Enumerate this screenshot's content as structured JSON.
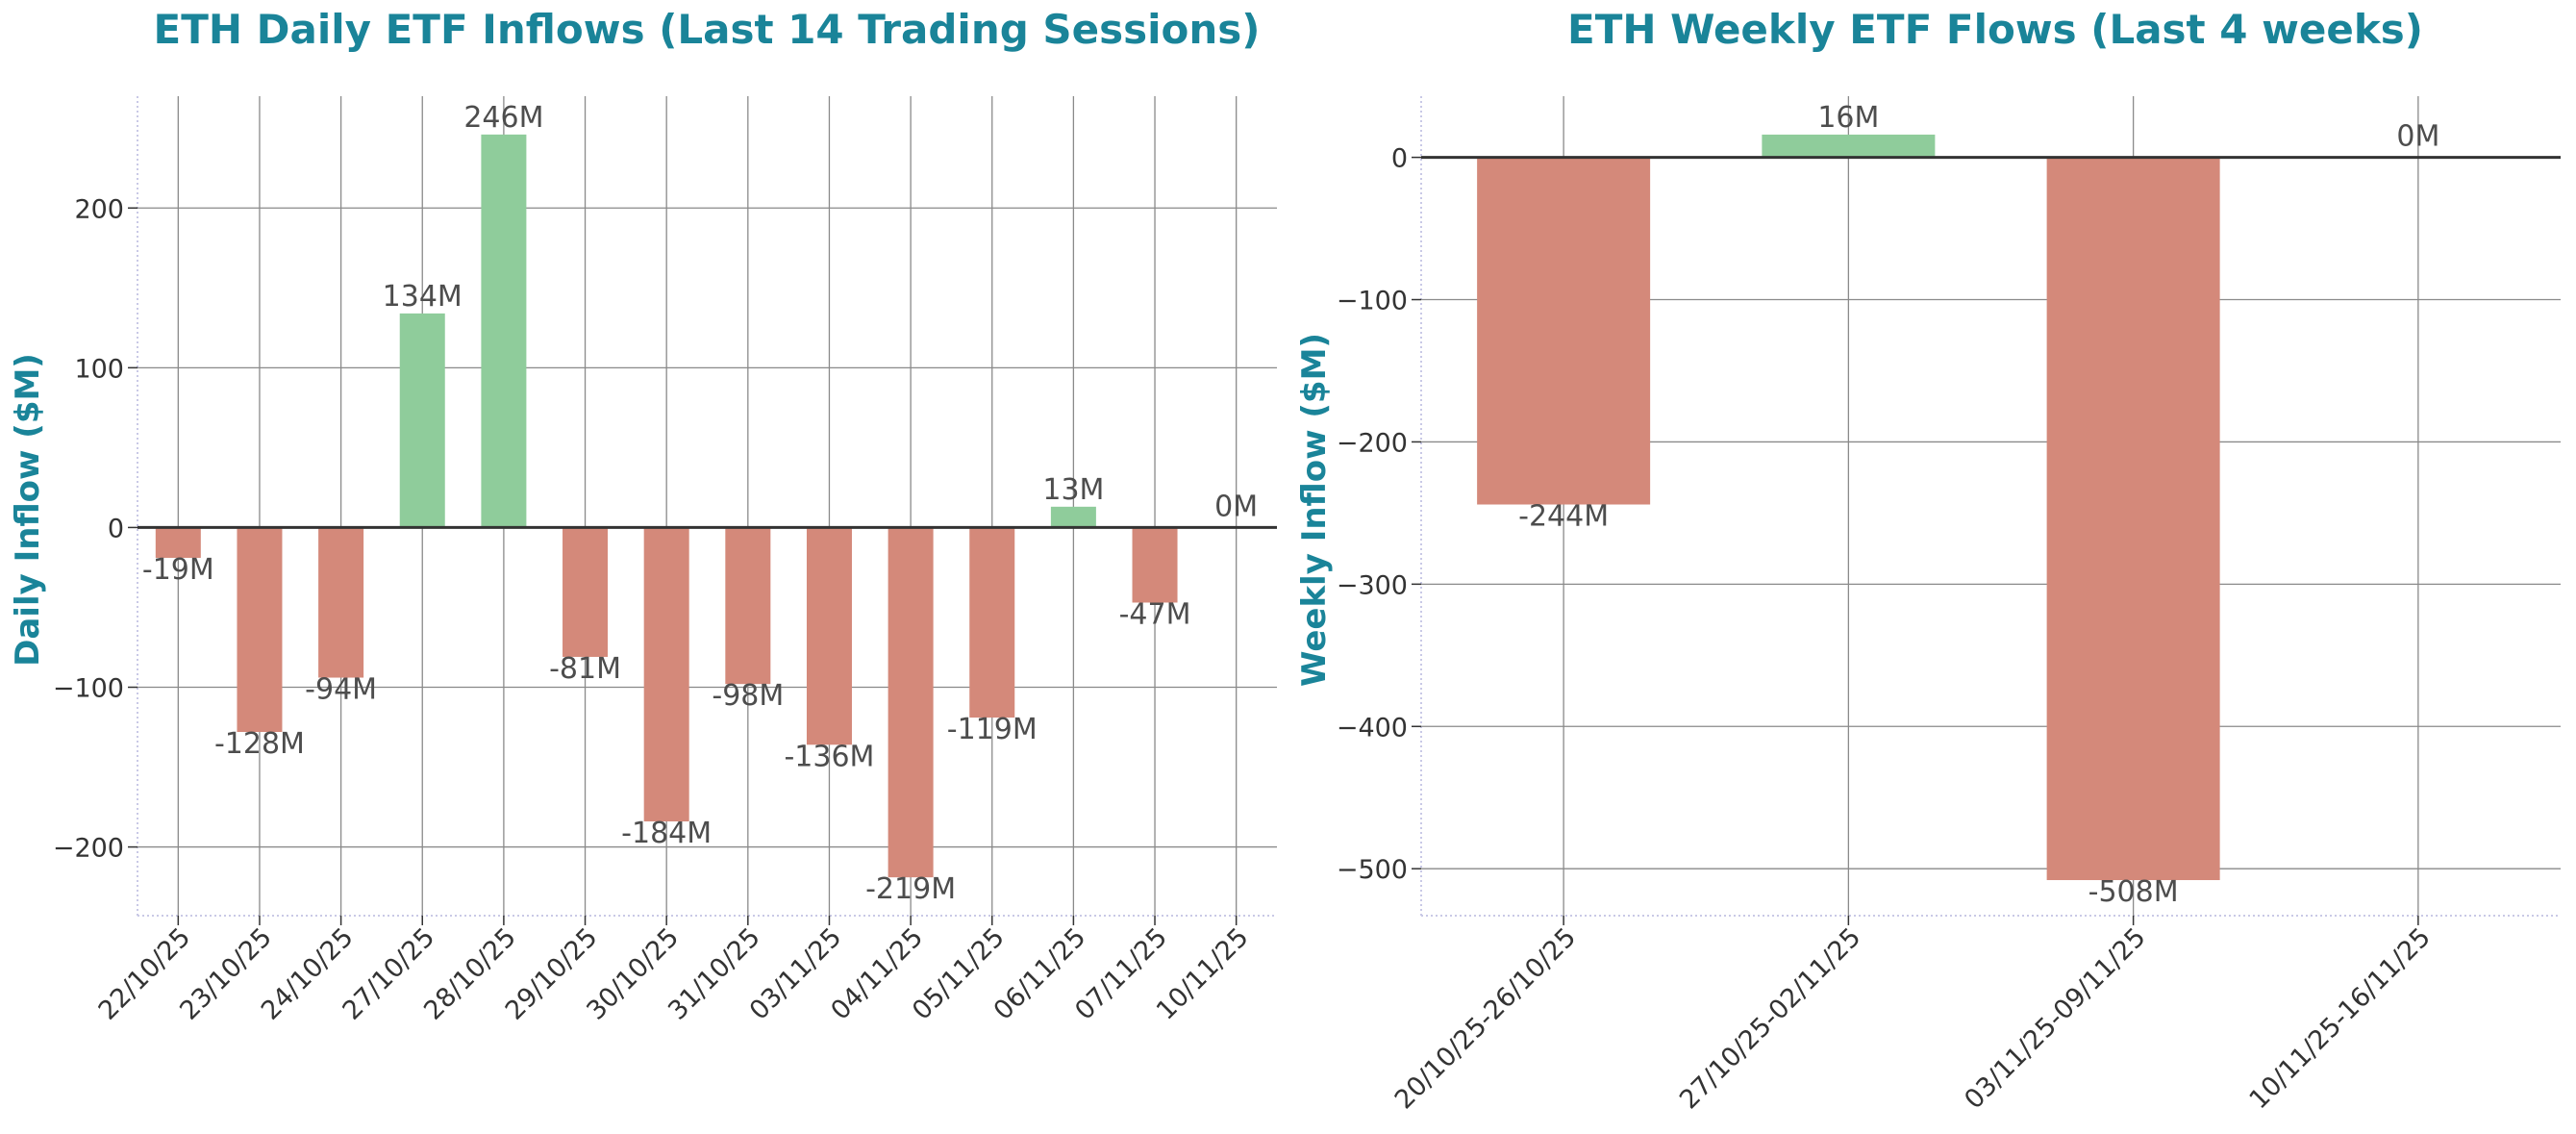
{
  "colors": {
    "title": "#1a8499",
    "positive": "#8fcc9b",
    "negative": "#d4897a",
    "label": "#4d4d4d",
    "tick": "#333333",
    "grid": "#8a8a8a",
    "zero": "#333333"
  },
  "chart_data": [
    {
      "type": "bar",
      "title": "ETH Daily ETF Inflows (Last 14 Trading Sessions)",
      "xlabel": "",
      "ylabel": "Daily Inflow ($M)",
      "categories": [
        "22/10/25",
        "23/10/25",
        "24/10/25",
        "27/10/25",
        "28/10/25",
        "29/10/25",
        "30/10/25",
        "31/10/25",
        "03/11/25",
        "04/11/25",
        "05/11/25",
        "06/11/25",
        "07/11/25",
        "10/11/25"
      ],
      "values": [
        -19,
        -128,
        -94,
        134,
        246,
        -81,
        -184,
        -98,
        -136,
        -219,
        -119,
        13,
        -47,
        0
      ],
      "data_labels": [
        "-19M",
        "-128M",
        "-94M",
        "134M",
        "246M",
        "-81M",
        "-184M",
        "-98M",
        "-136M",
        "-219M",
        "-119M",
        "13M",
        "-47M",
        "0M"
      ],
      "ylim": [
        -243,
        270
      ],
      "yticks": [
        -200,
        -100,
        0,
        100,
        200
      ],
      "ytick_labels": [
        "−200",
        "−100",
        "0",
        "100",
        "200"
      ],
      "grid": true,
      "legend": "none"
    },
    {
      "type": "bar",
      "title": "ETH Weekly ETF Flows (Last 4 weeks)",
      "xlabel": "",
      "ylabel": "Weekly Inflow ($M)",
      "categories": [
        "20/10/25-26/10/25",
        "27/10/25-02/11/25",
        "03/11/25-09/11/25",
        "10/11/25-16/11/25"
      ],
      "values": [
        -244,
        16,
        -508,
        0
      ],
      "data_labels": [
        "-244M",
        "16M",
        "-508M",
        "0M"
      ],
      "ylim": [
        -533,
        43
      ],
      "yticks": [
        -500,
        -400,
        -300,
        -200,
        -100,
        0
      ],
      "ytick_labels": [
        "−500",
        "−400",
        "−300",
        "−200",
        "−100",
        "0"
      ],
      "grid": true,
      "legend": "none"
    }
  ]
}
